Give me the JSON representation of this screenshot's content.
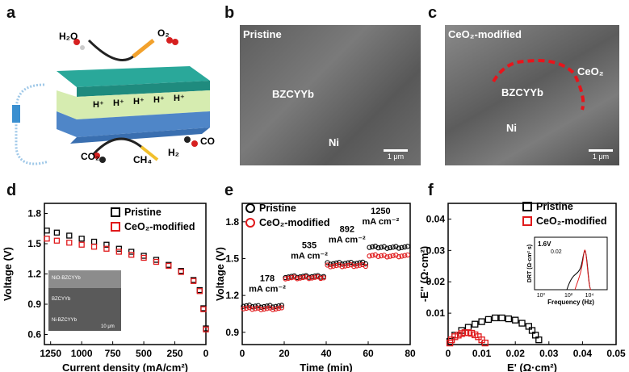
{
  "panels": {
    "a": "a",
    "b": "b",
    "c": "c",
    "d": "d",
    "e": "e",
    "f": "f"
  },
  "schematic": {
    "h2o": "H₂O",
    "o2": "O₂",
    "co2": "CO₂",
    "ch4": "CH₄",
    "h2": "H₂",
    "co": "CO",
    "proton": "H⁺"
  },
  "sem_b": {
    "title": "Pristine",
    "label1": "BZCYYb",
    "label2": "Ni",
    "scale": "1 μm"
  },
  "sem_c": {
    "title": "CeO₂-modified",
    "label1": "BZCYYb",
    "label2": "Ni",
    "label3": "CeO₂",
    "scale": "1 μm"
  },
  "colors": {
    "pristine": "#000000",
    "ceo2": "#e0191b",
    "sem": "#6d6d6d",
    "red_dash": "#e8141b"
  },
  "chart_data": [
    {
      "panel": "d",
      "type": "scatter",
      "xlabel": "Current density (mA/cm²)",
      "ylabel": "Voltage (V)",
      "xlim": [
        1300,
        0
      ],
      "ylim": [
        0.5,
        1.9
      ],
      "xticks": [
        "1250",
        "1000",
        "750",
        "500",
        "250",
        "0"
      ],
      "yticks": [
        "0.6",
        "0.9",
        "1.2",
        "1.5",
        "1.8"
      ],
      "inset_labels": [
        "NiO-BZCYYb",
        "BZCYYb",
        "Ni-BZCYYb",
        "10 μm"
      ],
      "series": [
        {
          "name": "Pristine",
          "marker": "square",
          "x": [
            1280,
            1200,
            1100,
            1000,
            900,
            800,
            700,
            600,
            500,
            400,
            300,
            200,
            100,
            50,
            20,
            0
          ],
          "y": [
            1.63,
            1.61,
            1.58,
            1.55,
            1.52,
            1.49,
            1.45,
            1.42,
            1.38,
            1.34,
            1.29,
            1.23,
            1.14,
            1.04,
            0.86,
            0.66
          ]
        },
        {
          "name": "CeO₂-modified",
          "marker": "square",
          "x": [
            1280,
            1200,
            1100,
            1000,
            900,
            800,
            700,
            600,
            500,
            400,
            300,
            200,
            100,
            50,
            20,
            0
          ],
          "y": [
            1.55,
            1.53,
            1.51,
            1.49,
            1.47,
            1.45,
            1.42,
            1.39,
            1.36,
            1.32,
            1.28,
            1.22,
            1.13,
            1.03,
            0.85,
            0.65
          ]
        }
      ]
    },
    {
      "panel": "e",
      "type": "scatter",
      "xlabel": "Time (min)",
      "ylabel": "Voltage (V)",
      "xlim": [
        0,
        80
      ],
      "ylim": [
        0.8,
        1.95
      ],
      "xticks": [
        "0",
        "20",
        "40",
        "60",
        "80"
      ],
      "yticks": [
        "0.9",
        "1.2",
        "1.5",
        "1.8"
      ],
      "annotations": [
        {
          "value": "178",
          "unit": "mA cm⁻²"
        },
        {
          "value": "535",
          "unit": "mA cm⁻²"
        },
        {
          "value": "892",
          "unit": "mA cm⁻²"
        },
        {
          "value": "1250",
          "unit": "mA cm⁻²"
        }
      ],
      "series": [
        {
          "name": "Pristine",
          "marker": "circle",
          "segments": [
            {
              "x0": 0,
              "x1": 20,
              "y": 1.11
            },
            {
              "x0": 20,
              "x1": 40,
              "y": 1.35
            },
            {
              "x0": 40,
              "x1": 60,
              "y": 1.46
            },
            {
              "x0": 60,
              "x1": 80,
              "y": 1.59
            }
          ]
        },
        {
          "name": "CeO₂-modified",
          "marker": "circle",
          "segments": [
            {
              "x0": 0,
              "x1": 20,
              "y": 1.09
            },
            {
              "x0": 20,
              "x1": 40,
              "y": 1.34
            },
            {
              "x0": 40,
              "x1": 60,
              "y": 1.44
            },
            {
              "x0": 60,
              "x1": 80,
              "y": 1.52
            }
          ]
        }
      ]
    },
    {
      "panel": "f",
      "type": "scatter",
      "xlabel": "E' (Ω·cm²)",
      "ylabel": "-E'' (Ω·cm²)",
      "xlim": [
        0,
        0.05
      ],
      "ylim": [
        0,
        0.045
      ],
      "xticks": [
        "0",
        "0.01",
        "0.02",
        "0.03",
        "0.04",
        "0.05"
      ],
      "yticks": [
        "0.01",
        "0.02",
        "0.03",
        "0.04"
      ],
      "series": [
        {
          "name": "Pristine",
          "marker": "square",
          "x": [
            0.0005,
            0.002,
            0.004,
            0.006,
            0.008,
            0.01,
            0.012,
            0.014,
            0.016,
            0.018,
            0.02,
            0.022,
            0.024,
            0.025,
            0.026,
            0.027
          ],
          "y": [
            0.001,
            0.003,
            0.0045,
            0.0055,
            0.0065,
            0.0073,
            0.008,
            0.0085,
            0.0085,
            0.0082,
            0.0078,
            0.0068,
            0.0058,
            0.0045,
            0.003,
            0.0015
          ]
        },
        {
          "name": "CeO₂-modified",
          "marker": "square",
          "x": [
            0.0005,
            0.001,
            0.002,
            0.003,
            0.004,
            0.005,
            0.006,
            0.007,
            0.008,
            0.009,
            0.01,
            0.011
          ],
          "y": [
            0.0005,
            0.0015,
            0.0025,
            0.003,
            0.0035,
            0.0038,
            0.0038,
            0.0036,
            0.0031,
            0.0025,
            0.0015,
            0.0005
          ]
        }
      ],
      "inset": {
        "tag": "1.6V",
        "xlabel": "Frequency (Hz)",
        "ylabel": "DRT (Ω·cm² s)",
        "xticks": [
          "10⁰",
          "10²",
          "10⁴"
        ],
        "yticks": [
          "0.02"
        ]
      }
    }
  ]
}
